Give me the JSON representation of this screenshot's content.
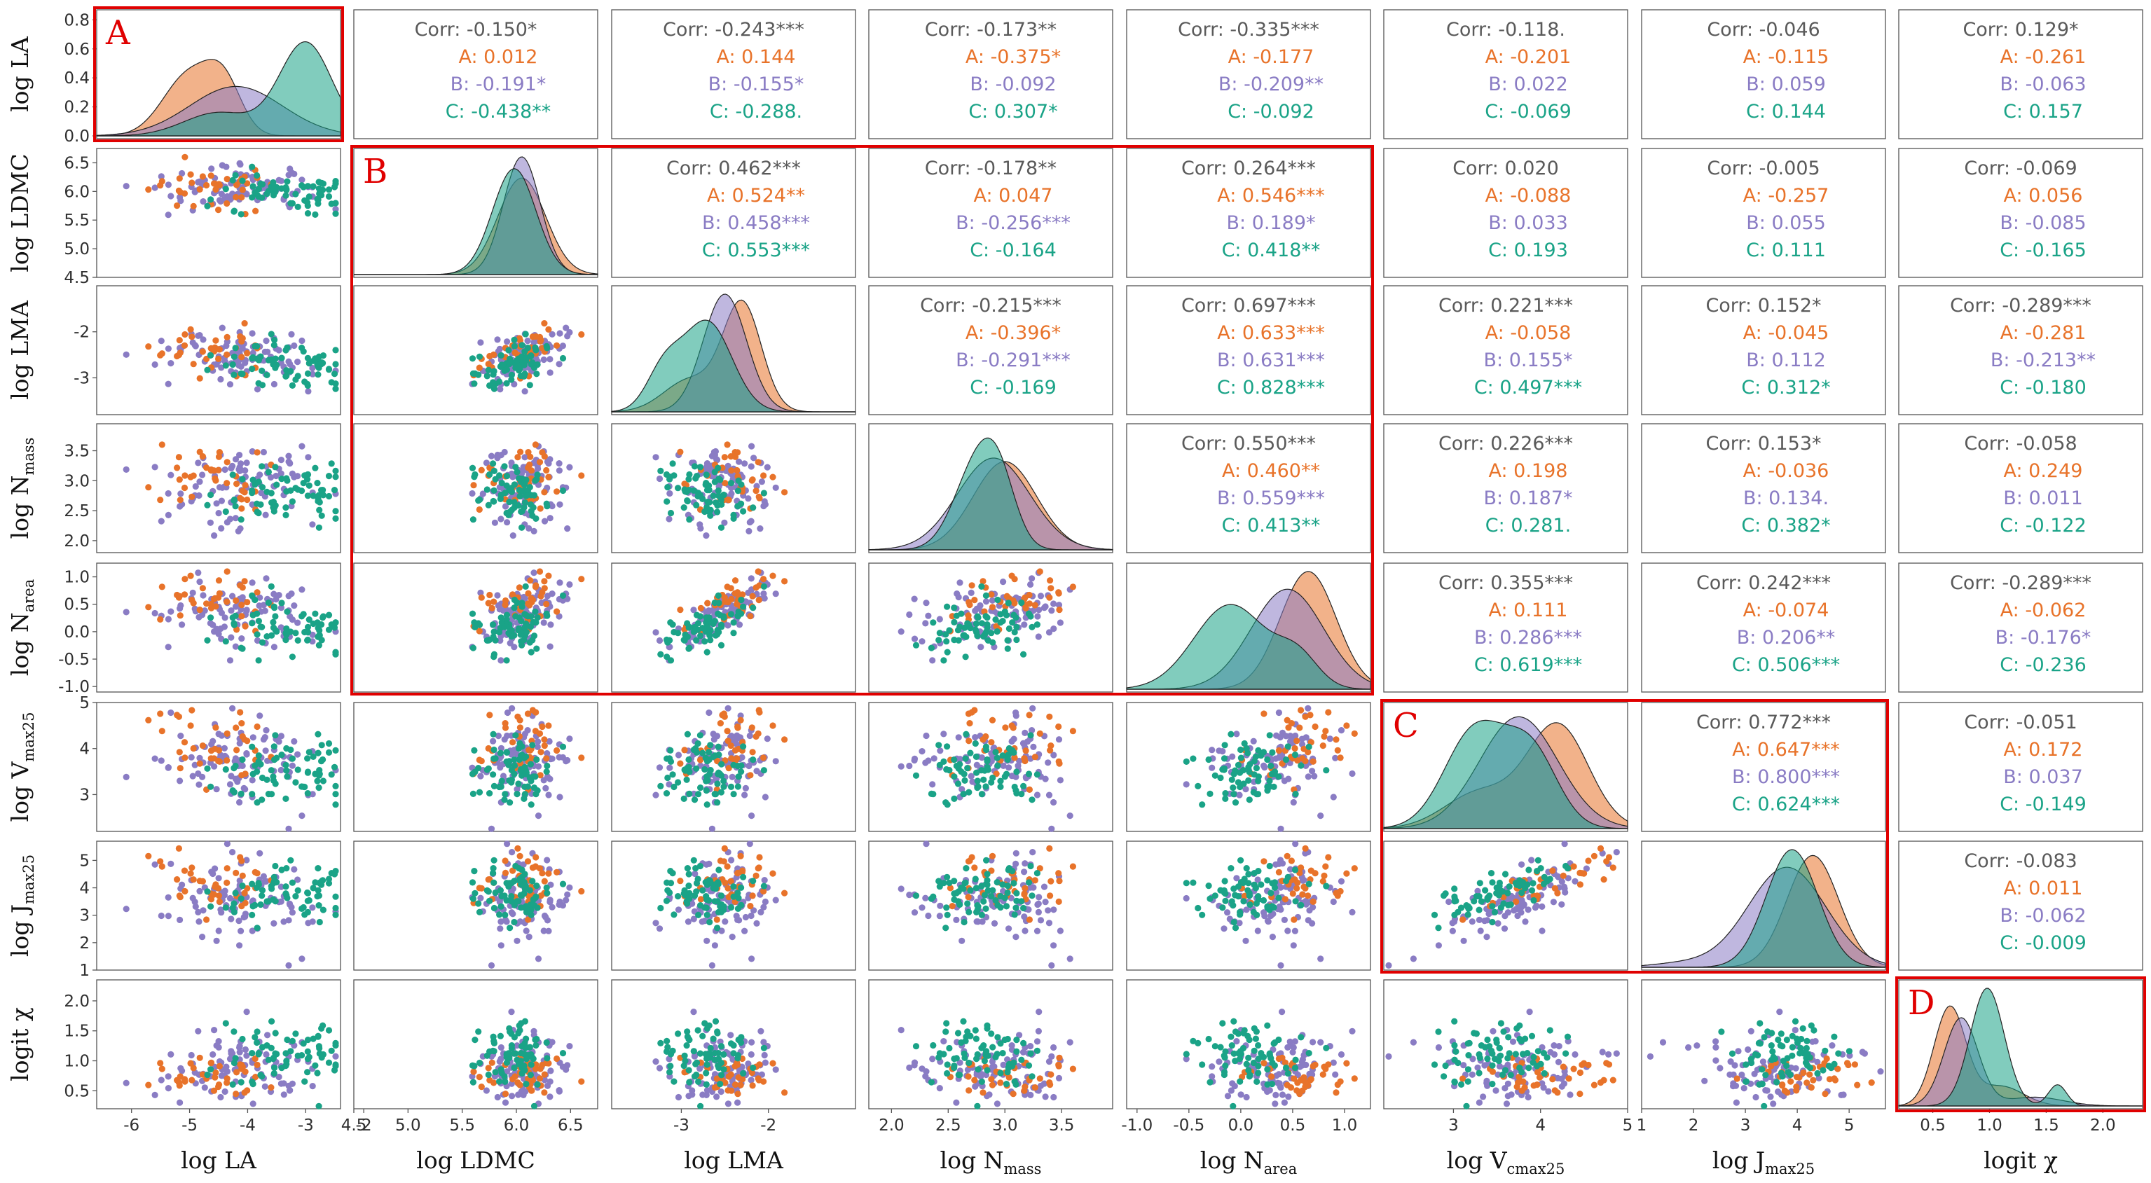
{
  "chart_data": {
    "type": "scatter-matrix",
    "title": "",
    "groups": [
      "A",
      "B",
      "C"
    ],
    "group_colors": {
      "A": "#e8732a",
      "B": "#8a7cc4",
      "C": "#1aa387"
    },
    "variables": [
      {
        "key": "LA",
        "label_pre": "log LA",
        "label_sub": "",
        "label_post": "",
        "range": [
          -6.6,
          -2.4
        ],
        "ticks": [
          -6,
          -5,
          -4,
          -3,
          -2
        ],
        "tick_labels": [
          "-6",
          "-5",
          "-4",
          "-3",
          "-2"
        ]
      },
      {
        "key": "LDMC",
        "label_pre": "log LDMC",
        "label_sub": "",
        "label_post": "",
        "range": [
          4.5,
          6.75
        ],
        "ticks": [
          4.5,
          5.0,
          5.5,
          6.0,
          6.5
        ],
        "tick_labels": [
          "4.5",
          "5.0",
          "5.5",
          "6.0",
          "6.5"
        ]
      },
      {
        "key": "LMA",
        "label_pre": "log LMA",
        "label_sub": "",
        "label_post": "",
        "range": [
          -3.8,
          -1.0
        ],
        "ticks": [
          -3,
          -2
        ],
        "tick_labels": [
          "-3",
          "-2"
        ]
      },
      {
        "key": "Nmass",
        "label_pre": "log N",
        "label_sub": "mass",
        "label_post": "",
        "range": [
          1.8,
          3.95
        ],
        "ticks": [
          2.0,
          2.5,
          3.0,
          3.5
        ],
        "tick_labels": [
          "2.0",
          "2.5",
          "3.0",
          "3.5"
        ]
      },
      {
        "key": "Narea",
        "label_pre": "log N",
        "label_sub": "area",
        "label_post": "",
        "range": [
          -1.1,
          1.25
        ],
        "ticks": [
          -1.0,
          -0.5,
          0.0,
          0.5,
          1.0
        ],
        "tick_labels": [
          "-1.0",
          "-0.5",
          "0.0",
          "0.5",
          "1.0"
        ]
      },
      {
        "key": "Vcmax25",
        "label_pre": "log V",
        "label_sub": "cmax25",
        "label_post": "",
        "y_sub": "max25",
        "range": [
          2.2,
          5.0
        ],
        "ticks": [
          3,
          4,
          5
        ],
        "tick_labels": [
          "3",
          "4",
          "5"
        ]
      },
      {
        "key": "Jmax25",
        "label_pre": "log J",
        "label_sub": "max25",
        "label_post": "",
        "range": [
          1.0,
          5.7
        ],
        "ticks": [
          1,
          2,
          3,
          4,
          5
        ],
        "tick_labels": [
          "1",
          "2",
          "3",
          "4",
          "5"
        ]
      },
      {
        "key": "chi",
        "label_pre": "logit χ",
        "label_sub": "",
        "label_post": "",
        "range": [
          0.2,
          2.35
        ],
        "ticks": [
          0.5,
          1.0,
          1.5,
          2.0
        ],
        "tick_labels": [
          "0.5",
          "1.0",
          "1.5",
          "2.0"
        ]
      }
    ],
    "diag0_yaxis": {
      "range": [
        0,
        0.85
      ],
      "ticks": [
        0.0,
        0.2,
        0.4,
        0.6,
        0.8
      ],
      "tick_labels": [
        "0.0",
        "0.2",
        "0.4",
        "0.6",
        "0.8"
      ]
    },
    "correlations": [
      {
        "row": 0,
        "col": 1,
        "corr": "Corr: -0.150*",
        "A": "A: 0.012",
        "B": "B: -0.191*",
        "C": "C: -0.438**"
      },
      {
        "row": 0,
        "col": 2,
        "corr": "Corr: -0.243***",
        "A": "A: 0.144",
        "B": "B: -0.155*",
        "C": "C: -0.288."
      },
      {
        "row": 0,
        "col": 3,
        "corr": "Corr: -0.173**",
        "A": "A: -0.375*",
        "B": "B: -0.092",
        "C": "C: 0.307*"
      },
      {
        "row": 0,
        "col": 4,
        "corr": "Corr: -0.335***",
        "A": "A: -0.177",
        "B": "B: -0.209**",
        "C": "C: -0.092"
      },
      {
        "row": 0,
        "col": 5,
        "corr": "Corr: -0.118.",
        "A": "A: -0.201",
        "B": "B: 0.022",
        "C": "C: -0.069"
      },
      {
        "row": 0,
        "col": 6,
        "corr": "Corr: -0.046",
        "A": "A: -0.115",
        "B": "B: 0.059",
        "C": "C: 0.144"
      },
      {
        "row": 0,
        "col": 7,
        "corr": "Corr: 0.129*",
        "A": "A: -0.261",
        "B": "B: -0.063",
        "C": "C: 0.157"
      },
      {
        "row": 1,
        "col": 2,
        "corr": "Corr: 0.462***",
        "A": "A: 0.524**",
        "B": "B: 0.458***",
        "C": "C: 0.553***"
      },
      {
        "row": 1,
        "col": 3,
        "corr": "Corr: -0.178**",
        "A": "A: 0.047",
        "B": "B: -0.256***",
        "C": "C: -0.164"
      },
      {
        "row": 1,
        "col": 4,
        "corr": "Corr: 0.264***",
        "A": "A: 0.546***",
        "B": "B: 0.189*",
        "C": "C: 0.418**"
      },
      {
        "row": 1,
        "col": 5,
        "corr": "Corr: 0.020",
        "A": "A: -0.088",
        "B": "B: 0.033",
        "C": "C: 0.193"
      },
      {
        "row": 1,
        "col": 6,
        "corr": "Corr: -0.005",
        "A": "A: -0.257",
        "B": "B: 0.055",
        "C": "C: 0.111"
      },
      {
        "row": 1,
        "col": 7,
        "corr": "Corr: -0.069",
        "A": "A: 0.056",
        "B": "B: -0.085",
        "C": "C: -0.165"
      },
      {
        "row": 2,
        "col": 3,
        "corr": "Corr: -0.215***",
        "A": "A: -0.396*",
        "B": "B: -0.291***",
        "C": "C: -0.169"
      },
      {
        "row": 2,
        "col": 4,
        "corr": "Corr: 0.697***",
        "A": "A: 0.633***",
        "B": "B: 0.631***",
        "C": "C: 0.828***"
      },
      {
        "row": 2,
        "col": 5,
        "corr": "Corr: 0.221***",
        "A": "A: -0.058",
        "B": "B: 0.155*",
        "C": "C: 0.497***"
      },
      {
        "row": 2,
        "col": 6,
        "corr": "Corr: 0.152*",
        "A": "A: -0.045",
        "B": "B: 0.112",
        "C": "C: 0.312*"
      },
      {
        "row": 2,
        "col": 7,
        "corr": "Corr: -0.289***",
        "A": "A: -0.281",
        "B": "B: -0.213**",
        "C": "C: -0.180"
      },
      {
        "row": 3,
        "col": 4,
        "corr": "Corr: 0.550***",
        "A": "A: 0.460**",
        "B": "B: 0.559***",
        "C": "C: 0.413**"
      },
      {
        "row": 3,
        "col": 5,
        "corr": "Corr: 0.226***",
        "A": "A: 0.198",
        "B": "B: 0.187*",
        "C": "C: 0.281."
      },
      {
        "row": 3,
        "col": 6,
        "corr": "Corr: 0.153*",
        "A": "A: -0.036",
        "B": "B: 0.134.",
        "C": "C: 0.382*"
      },
      {
        "row": 3,
        "col": 7,
        "corr": "Corr: -0.058",
        "A": "A: 0.249",
        "B": "B: 0.011",
        "C": "C: -0.122"
      },
      {
        "row": 4,
        "col": 5,
        "corr": "Corr: 0.355***",
        "A": "A: 0.111",
        "B": "B: 0.286***",
        "C": "C: 0.619***"
      },
      {
        "row": 4,
        "col": 6,
        "corr": "Corr: 0.242***",
        "A": "A: -0.074",
        "B": "B: 0.206**",
        "C": "C: 0.506***"
      },
      {
        "row": 4,
        "col": 7,
        "corr": "Corr: -0.289***",
        "A": "A: -0.062",
        "B": "B: -0.176*",
        "C": "C: -0.236"
      },
      {
        "row": 5,
        "col": 6,
        "corr": "Corr: 0.772***",
        "A": "A: 0.647***",
        "B": "B: 0.800***",
        "C": "C: 0.624***"
      },
      {
        "row": 5,
        "col": 7,
        "corr": "Corr: -0.051",
        "A": "A: 0.172",
        "B": "B: 0.037",
        "C": "C: -0.149"
      },
      {
        "row": 6,
        "col": 7,
        "corr": "Corr: -0.083",
        "A": "A: 0.011",
        "B": "B: -0.062",
        "C": "C: -0.009"
      }
    ],
    "densities": [
      {
        "var": "LA",
        "A": [
          {
            "m": -5.0,
            "s": 0.45,
            "w": 1.0
          },
          {
            "m": -4.4,
            "s": 0.3,
            "w": 0.7
          }
        ],
        "B": [
          {
            "m": -4.2,
            "s": 0.8,
            "w": 1.0
          }
        ],
        "C": [
          {
            "m": -3.0,
            "s": 0.45,
            "w": 1.0
          },
          {
            "m": -4.5,
            "s": 0.6,
            "w": 0.25
          }
        ],
        "peaks": {
          "A": 0.65,
          "B": 0.42,
          "C": 0.8
        }
      },
      {
        "var": "LDMC",
        "A": [
          {
            "m": 6.05,
            "s": 0.22,
            "w": 1.0
          }
        ],
        "B": [
          {
            "m": 6.05,
            "s": 0.17,
            "w": 1.0
          }
        ],
        "C": [
          {
            "m": 5.98,
            "s": 0.2,
            "w": 1.0
          }
        ],
        "peaks": {
          "A": 0.82,
          "B": 1.0,
          "C": 0.9
        }
      },
      {
        "var": "LMA",
        "A": [
          {
            "m": -2.3,
            "s": 0.22,
            "w": 1.0
          },
          {
            "m": -2.9,
            "s": 0.3,
            "w": 0.3
          }
        ],
        "B": [
          {
            "m": -2.5,
            "s": 0.25,
            "w": 1.0
          }
        ],
        "C": [
          {
            "m": -2.7,
            "s": 0.28,
            "w": 1.0
          },
          {
            "m": -3.2,
            "s": 0.2,
            "w": 0.45
          }
        ],
        "peaks": {
          "A": 0.95,
          "B": 1.0,
          "C": 0.78
        }
      },
      {
        "var": "Nmass",
        "A": [
          {
            "m": 3.0,
            "s": 0.28,
            "w": 1.0
          }
        ],
        "B": [
          {
            "m": 2.9,
            "s": 0.32,
            "w": 1.0
          }
        ],
        "C": [
          {
            "m": 2.75,
            "s": 0.2,
            "w": 1.0
          },
          {
            "m": 2.95,
            "s": 0.15,
            "w": 0.6
          }
        ],
        "peaks": {
          "A": 0.75,
          "B": 0.78,
          "C": 0.95
        }
      },
      {
        "var": "Narea",
        "A": [
          {
            "m": 0.65,
            "s": 0.27,
            "w": 1.0
          }
        ],
        "B": [
          {
            "m": 0.45,
            "s": 0.35,
            "w": 1.0
          }
        ],
        "C": [
          {
            "m": -0.1,
            "s": 0.35,
            "w": 1.0
          },
          {
            "m": 0.55,
            "s": 0.2,
            "w": 0.35
          }
        ],
        "peaks": {
          "A": 1.0,
          "B": 0.85,
          "C": 0.72
        }
      },
      {
        "var": "Vcmax25",
        "A": [
          {
            "m": 4.2,
            "s": 0.35,
            "w": 1.0
          },
          {
            "m": 3.3,
            "s": 0.4,
            "w": 0.35
          }
        ],
        "B": [
          {
            "m": 3.75,
            "s": 0.45,
            "w": 1.0
          }
        ],
        "C": [
          {
            "m": 3.25,
            "s": 0.35,
            "w": 1.0
          },
          {
            "m": 3.9,
            "s": 0.3,
            "w": 0.75
          }
        ],
        "peaks": {
          "A": 0.9,
          "B": 0.95,
          "C": 0.92
        }
      },
      {
        "var": "Jmax25",
        "A": [
          {
            "m": 4.3,
            "s": 0.5,
            "w": 1.0
          }
        ],
        "B": [
          {
            "m": 3.8,
            "s": 0.75,
            "w": 1.0
          },
          {
            "m": 1.8,
            "s": 0.6,
            "w": 0.04
          }
        ],
        "C": [
          {
            "m": 3.9,
            "s": 0.5,
            "w": 1.0
          }
        ],
        "peaks": {
          "A": 0.95,
          "B": 0.85,
          "C": 1.0
        }
      },
      {
        "var": "chi",
        "A": [
          {
            "m": 0.65,
            "s": 0.14,
            "w": 1.0
          },
          {
            "m": 1.1,
            "s": 0.2,
            "w": 0.2
          }
        ],
        "B": [
          {
            "m": 0.75,
            "s": 0.15,
            "w": 1.0
          },
          {
            "m": 1.4,
            "s": 0.25,
            "w": 0.1
          }
        ],
        "C": [
          {
            "m": 0.98,
            "s": 0.15,
            "w": 1.0
          },
          {
            "m": 1.6,
            "s": 0.08,
            "w": 0.18
          }
        ],
        "peaks": {
          "A": 0.85,
          "B": 0.75,
          "C": 1.0
        }
      }
    ],
    "scatter_rule": "lower-triangle panels show individual leaves colored by group A/B/C; points approximate the published scatter pattern",
    "highlight_regions": [
      {
        "label": "A",
        "rows": [
          0,
          0
        ],
        "cols": [
          0,
          0
        ]
      },
      {
        "label": "B",
        "rows": [
          1,
          4
        ],
        "cols": [
          1,
          4
        ]
      },
      {
        "label": "C",
        "rows": [
          5,
          6
        ],
        "cols": [
          5,
          6
        ]
      },
      {
        "label": "D",
        "rows": [
          7,
          7
        ],
        "cols": [
          7,
          7
        ]
      }
    ]
  }
}
